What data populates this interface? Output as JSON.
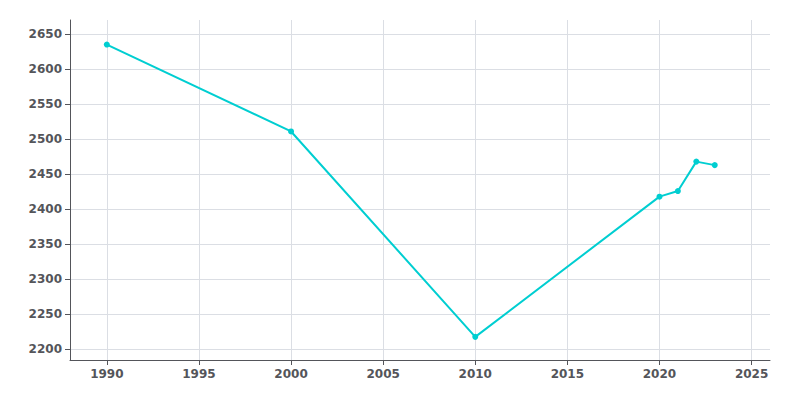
{
  "chart_data": {
    "type": "line",
    "x": [
      1990,
      2000,
      2010,
      2020,
      2021,
      2022,
      2023
    ],
    "values": [
      2635,
      2511,
      2218,
      2418,
      2426,
      2468,
      2463
    ],
    "color": "#00CED1",
    "marker": "circle",
    "xlim": [
      1988,
      2026
    ],
    "xticks": [
      1990,
      1995,
      2000,
      2005,
      2010,
      2015,
      2020,
      2025
    ],
    "ylim": [
      2185,
      2670
    ],
    "yticks": [
      2200,
      2250,
      2300,
      2350,
      2400,
      2450,
      2500,
      2550,
      2600,
      2650
    ],
    "grid": true
  }
}
